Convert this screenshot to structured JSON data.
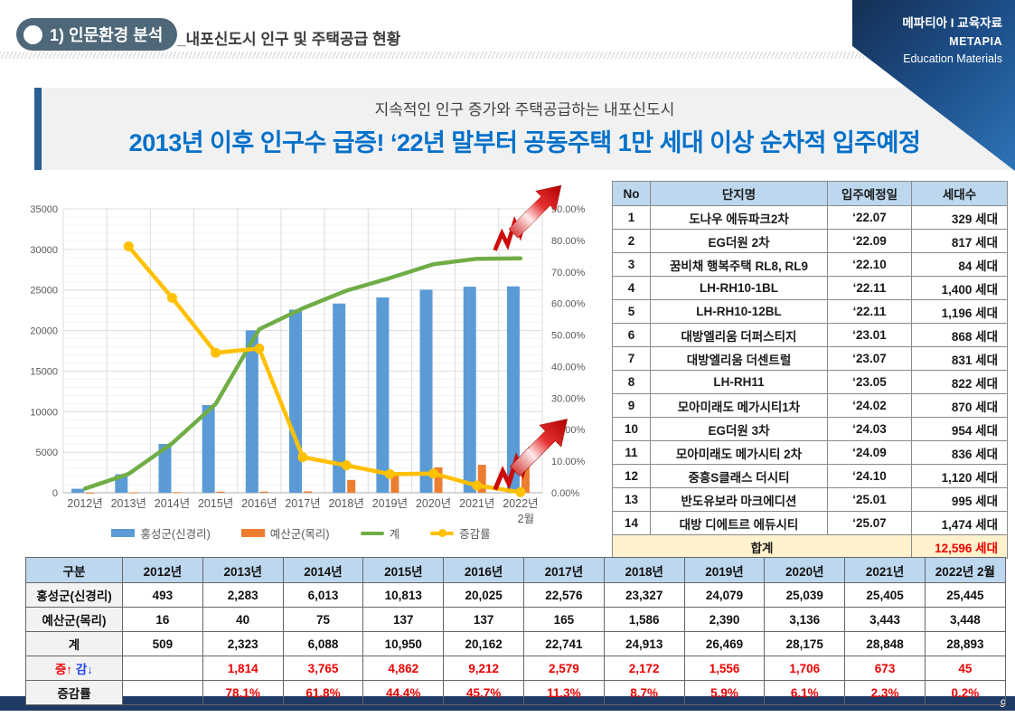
{
  "header": {
    "section_label": "1) 인문환경 분석",
    "page_subtitle": "_내포신도시 인구 및 주택공급 현황",
    "brand_line1": "메파티아 I 교육자료",
    "brand_line2": "METAPIA",
    "brand_line3": "Education Materials"
  },
  "banner": {
    "subtitle": "지속적인 인구 증가와 주택공급하는 내포신도시",
    "title": "2013년 이후 인구수 급증!  ‘22년 말부터 공동주택 1만 세대 이상 순차적 입주예정",
    "title_color": "#0070C9"
  },
  "chart_data": {
    "type": "bar",
    "subtype": "combo-bar-line",
    "categories": [
      "2012년",
      "2013년",
      "2014년",
      "2015년",
      "2016년",
      "2017년",
      "2018년",
      "2019년",
      "2020년",
      "2021년",
      "2022년"
    ],
    "last_category_sub": "2월",
    "series": [
      {
        "name": "홍성군(신경리)",
        "kind": "bar",
        "axis": "left",
        "color": "#5B9BD5",
        "values": [
          493,
          2283,
          6013,
          10813,
          20025,
          22576,
          23327,
          24079,
          25039,
          25405,
          25445
        ]
      },
      {
        "name": "예산군(목리)",
        "kind": "bar",
        "axis": "left",
        "color": "#ED7D31",
        "values": [
          16,
          40,
          75,
          137,
          137,
          165,
          1586,
          2390,
          3136,
          3443,
          3448
        ]
      },
      {
        "name": "계",
        "kind": "line",
        "axis": "left",
        "color": "#70AD47",
        "values": [
          509,
          2323,
          6088,
          10950,
          20162,
          22741,
          24913,
          26469,
          28175,
          28848,
          28893
        ]
      },
      {
        "name": "증감률",
        "kind": "line-marker",
        "axis": "right",
        "color": "#FFC000",
        "values": [
          null,
          78.1,
          61.8,
          44.4,
          45.7,
          11.3,
          8.7,
          5.9,
          6.1,
          2.3,
          0.2
        ]
      }
    ],
    "left_axis": {
      "min": 0,
      "max": 35000,
      "step": 5000,
      "tick_labels": [
        "0",
        "5000",
        "10000",
        "15000",
        "20000",
        "25000",
        "30000",
        "35000"
      ]
    },
    "right_axis": {
      "min": 0,
      "max": 90,
      "step": 10,
      "tick_labels": [
        "0.00%",
        "10.00%",
        "20.00%",
        "30.00%",
        "40.00%",
        "50.00%",
        "60.00%",
        "70.00%",
        "80.00%",
        "90.00%"
      ]
    },
    "grid": "major-and-minor-on",
    "legend_position": "bottom",
    "annotations": [
      "red-zigzag-up-arrow at end of 계 line",
      "red-zigzag-up-arrow at end of 증감률 line"
    ]
  },
  "complex_table": {
    "headers": [
      "No",
      "단지명",
      "입주예정일",
      "세대수"
    ],
    "rows": [
      [
        "1",
        "도나우 에듀파크2차",
        "‘22.07",
        "329 세대"
      ],
      [
        "2",
        "EG더원 2차",
        "‘22.09",
        "817 세대"
      ],
      [
        "3",
        "꿈비채 행복주택 RL8, RL9",
        "‘22.10",
        "84 세대"
      ],
      [
        "4",
        "LH-RH10-1BL",
        "‘22.11",
        "1,400 세대"
      ],
      [
        "5",
        "LH-RH10-12BL",
        "‘22.11",
        "1,196 세대"
      ],
      [
        "6",
        "대방엘리움 더퍼스티지",
        "‘23.01",
        "868 세대"
      ],
      [
        "7",
        "대방엘리움 더센트럴",
        "‘23.07",
        "831 세대"
      ],
      [
        "8",
        "LH-RH11",
        "‘23.05",
        "822 세대"
      ],
      [
        "9",
        "모아미래도 메가시티1차",
        "‘24.02",
        "870 세대"
      ],
      [
        "10",
        "EG더원 3차",
        "‘24.03",
        "954 세대"
      ],
      [
        "11",
        "모아미래도 메가시티 2차",
        "‘24.09",
        "836 세대"
      ],
      [
        "12",
        "중흥S클래스 더시티",
        "‘24.10",
        "1,120 세대"
      ],
      [
        "13",
        "반도유보라 마크에디션",
        "‘25.01",
        "995 세대"
      ],
      [
        "14",
        "대방 디에트르 에듀시티",
        "‘25.07",
        "1,474 세대"
      ]
    ],
    "total_label": "합계",
    "total_value": "12,596 세대"
  },
  "population_table": {
    "col_headers": [
      "구분",
      "2012년",
      "2013년",
      "2014년",
      "2015년",
      "2016년",
      "2017년",
      "2018년",
      "2019년",
      "2020년",
      "2021년",
      "2022년 2월"
    ],
    "rows": [
      {
        "label": "홍성군(신경리)",
        "style": "plain",
        "values": [
          "493",
          "2,283",
          "6,013",
          "10,813",
          "20,025",
          "22,576",
          "23,327",
          "24,079",
          "25,039",
          "25,405",
          "25,445"
        ]
      },
      {
        "label": "예산군(목리)",
        "style": "plain",
        "values": [
          "16",
          "40",
          "75",
          "137",
          "137",
          "165",
          "1,586",
          "2,390",
          "3,136",
          "3,443",
          "3,448"
        ]
      },
      {
        "label": "계",
        "style": "plain",
        "values": [
          "509",
          "2,323",
          "6,088",
          "10,950",
          "20,162",
          "22,741",
          "24,913",
          "26,469",
          "28,175",
          "28,848",
          "28,893"
        ]
      },
      {
        "label": "증↑ 감↓",
        "style": "updown",
        "label_up": "증↑",
        "label_down": "감↓",
        "values": [
          "",
          "1,814",
          "3,765",
          "4,862",
          "9,212",
          "2,579",
          "2,172",
          "1,556",
          "1,706",
          "673",
          "45"
        ]
      },
      {
        "label": "증감률",
        "style": "rate",
        "values": [
          "",
          "78.1%",
          "61.8%",
          "44.4%",
          "45.7%",
          "11.3%",
          "8.7%",
          "5.9%",
          "6.1%",
          "2.3%",
          "0.2%"
        ]
      }
    ]
  },
  "footer": {
    "page_number": "9"
  }
}
